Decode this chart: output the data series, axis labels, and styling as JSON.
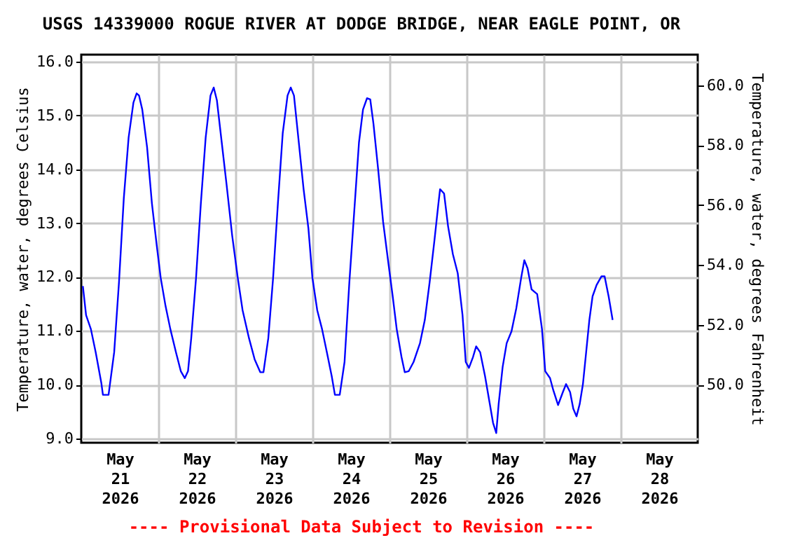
{
  "chart_data": {
    "type": "line",
    "title": "USGS 14339000 ROGUE RIVER AT DODGE BRIDGE, NEAR EAGLE POINT, OR",
    "ylabel": "Temperature, water, degrees Celsius",
    "y2label": "Temperature, water, degrees Fahrenheit",
    "annotations": [
      "---- Provisional Data Subject to Revision ----"
    ],
    "grid": true,
    "xlim": [
      "2026-05-21T00:00",
      "2026-05-29T00:00"
    ],
    "xticks": [
      {
        "value": "2026-05-21T12:00",
        "label": "May 21 2026"
      },
      {
        "value": "2026-05-22T00:00",
        "label": null
      },
      {
        "value": "2026-05-22T12:00",
        "label": "May 22 2026"
      },
      {
        "value": "2026-05-23T00:00",
        "label": null
      },
      {
        "value": "2026-05-23T12:00",
        "label": "May 23 2026"
      },
      {
        "value": "2026-05-24T00:00",
        "label": null
      },
      {
        "value": "2026-05-24T12:00",
        "label": "May 24 2026"
      },
      {
        "value": "2026-05-25T00:00",
        "label": null
      },
      {
        "value": "2026-05-25T12:00",
        "label": "May 25 2026"
      },
      {
        "value": "2026-05-26T00:00",
        "label": null
      },
      {
        "value": "2026-05-26T12:00",
        "label": "May 26 2026"
      },
      {
        "value": "2026-05-27T00:00",
        "label": null
      },
      {
        "value": "2026-05-27T12:00",
        "label": "May 27 2026"
      },
      {
        "value": "2026-05-28T00:00",
        "label": null
      },
      {
        "value": "2026-05-28T12:00",
        "label": "May 28 2026"
      }
    ],
    "ylim": [
      8.92,
      16.13
    ],
    "yticks": [
      {
        "value": 9,
        "label": "9.0"
      },
      {
        "value": 10,
        "label": "10.0"
      },
      {
        "value": 11,
        "label": "11.0"
      },
      {
        "value": 12,
        "label": "12.0"
      },
      {
        "value": 13,
        "label": "13.0"
      },
      {
        "value": 14,
        "label": "14.0"
      },
      {
        "value": 15,
        "label": "15.0"
      },
      {
        "value": 16,
        "label": "16.0"
      }
    ],
    "y2lim": [
      48.06,
      61.03
    ],
    "y2ticks": [
      {
        "value": 50,
        "label": "50.0"
      },
      {
        "value": 52,
        "label": "52.0"
      },
      {
        "value": 54,
        "label": "54.0"
      },
      {
        "value": 56,
        "label": "56.0"
      },
      {
        "value": 58,
        "label": "58.0"
      },
      {
        "value": 60,
        "label": "60.0"
      }
    ],
    "x": [
      "2026-05-21T00:30",
      "2026-05-21T01:30",
      "2026-05-21T03:00",
      "2026-05-21T04:30",
      "2026-05-21T06:15",
      "2026-05-21T06:45",
      "2026-05-21T08:30",
      "2026-05-21T10:15",
      "2026-05-21T11:45",
      "2026-05-21T13:15",
      "2026-05-21T14:45",
      "2026-05-21T16:15",
      "2026-05-21T17:15",
      "2026-05-21T18:00",
      "2026-05-21T19:00",
      "2026-05-21T20:30",
      "2026-05-21T22:00",
      "2026-05-21T23:30",
      "2026-05-22T00:45",
      "2026-05-22T02:15",
      "2026-05-22T03:45",
      "2026-05-22T05:30",
      "2026-05-22T07:00",
      "2026-05-22T08:15",
      "2026-05-22T09:15",
      "2026-05-22T10:15",
      "2026-05-22T11:45",
      "2026-05-22T13:15",
      "2026-05-22T14:45",
      "2026-05-22T16:15",
      "2026-05-22T17:15",
      "2026-05-22T18:15",
      "2026-05-22T19:45",
      "2026-05-22T21:15",
      "2026-05-22T23:00",
      "2026-05-23T00:45",
      "2026-05-23T02:15",
      "2026-05-23T04:15",
      "2026-05-23T06:00",
      "2026-05-23T07:45",
      "2026-05-23T08:45",
      "2026-05-23T10:15",
      "2026-05-23T11:45",
      "2026-05-23T13:15",
      "2026-05-23T14:45",
      "2026-05-23T16:15",
      "2026-05-23T17:15",
      "2026-05-23T18:15",
      "2026-05-23T19:45",
      "2026-05-23T21:15",
      "2026-05-23T22:45",
      "2026-05-24T00:00",
      "2026-05-24T01:30",
      "2026-05-24T03:00",
      "2026-05-24T04:30",
      "2026-05-24T06:00",
      "2026-05-24T07:00",
      "2026-05-24T08:30",
      "2026-05-24T10:00",
      "2026-05-24T11:30",
      "2026-05-24T13:00",
      "2026-05-24T14:30",
      "2026-05-24T15:45",
      "2026-05-24T17:00",
      "2026-05-24T18:00",
      "2026-05-24T19:00",
      "2026-05-24T20:30",
      "2026-05-24T22:00",
      "2026-05-24T23:30",
      "2026-05-25T01:00",
      "2026-05-25T02:15",
      "2026-05-25T03:45",
      "2026-05-25T04:45",
      "2026-05-25T06:00",
      "2026-05-25T07:30",
      "2026-05-25T09:30",
      "2026-05-25T11:00",
      "2026-05-25T12:30",
      "2026-05-25T14:00",
      "2026-05-25T15:15",
      "2026-05-25T15:45",
      "2026-05-25T17:00",
      "2026-05-25T18:15",
      "2026-05-25T19:45",
      "2026-05-25T21:15",
      "2026-05-25T22:45",
      "2026-05-25T23:45",
      "2026-05-26T00:45",
      "2026-05-26T02:00",
      "2026-05-26T03:00",
      "2026-05-26T04:15",
      "2026-05-26T05:45",
      "2026-05-26T07:15",
      "2026-05-26T08:15",
      "2026-05-26T09:15",
      "2026-05-26T10:00",
      "2026-05-26T11:15",
      "2026-05-26T12:30",
      "2026-05-26T14:00",
      "2026-05-26T15:30",
      "2026-05-26T17:00",
      "2026-05-26T18:00",
      "2026-05-26T19:00",
      "2026-05-26T20:15",
      "2026-05-26T22:00",
      "2026-05-26T23:30",
      "2026-05-27T00:30",
      "2026-05-27T02:00",
      "2026-05-27T03:00",
      "2026-05-27T04:30",
      "2026-05-27T06:00",
      "2026-05-27T07:00",
      "2026-05-27T08:15",
      "2026-05-27T09:15",
      "2026-05-27T10:15",
      "2026-05-27T11:15",
      "2026-05-27T12:15",
      "2026-05-27T13:15",
      "2026-05-27T14:15",
      "2026-05-27T15:15",
      "2026-05-27T16:30",
      "2026-05-27T18:00",
      "2026-05-27T19:00",
      "2026-05-27T20:15",
      "2026-05-27T21:30"
    ],
    "series": [
      {
        "color": "#0000ff",
        "values": [
          11.83,
          11.29,
          11.03,
          10.6,
          10.03,
          9.81,
          9.81,
          10.6,
          11.9,
          13.46,
          14.59,
          15.24,
          15.41,
          15.37,
          15.11,
          14.41,
          13.37,
          12.59,
          11.98,
          11.46,
          11.03,
          10.6,
          10.25,
          10.12,
          10.25,
          10.86,
          11.98,
          13.37,
          14.59,
          15.37,
          15.52,
          15.28,
          14.5,
          13.72,
          12.77,
          11.98,
          11.38,
          10.86,
          10.47,
          10.23,
          10.23,
          10.86,
          11.98,
          13.37,
          14.67,
          15.37,
          15.52,
          15.37,
          14.5,
          13.63,
          12.9,
          11.98,
          11.38,
          11.03,
          10.6,
          10.16,
          9.81,
          9.81,
          10.42,
          11.9,
          13.2,
          14.5,
          15.11,
          15.32,
          15.3,
          14.85,
          13.98,
          13.03,
          12.33,
          11.64,
          11.03,
          10.51,
          10.23,
          10.25,
          10.42,
          10.77,
          11.2,
          11.9,
          12.68,
          13.37,
          13.63,
          13.55,
          12.94,
          12.42,
          12.07,
          11.29,
          10.42,
          10.31,
          10.51,
          10.71,
          10.6,
          10.16,
          9.64,
          9.29,
          9.1,
          9.64,
          10.33,
          10.77,
          10.99,
          11.42,
          11.98,
          12.31,
          12.16,
          11.77,
          11.68,
          11.03,
          10.25,
          10.12,
          9.9,
          9.62,
          9.86,
          10.01,
          9.86,
          9.55,
          9.41,
          9.64,
          10.01,
          10.6,
          11.2,
          11.64,
          11.85,
          12.01,
          12.01,
          11.64,
          11.2
        ]
      }
    ]
  }
}
